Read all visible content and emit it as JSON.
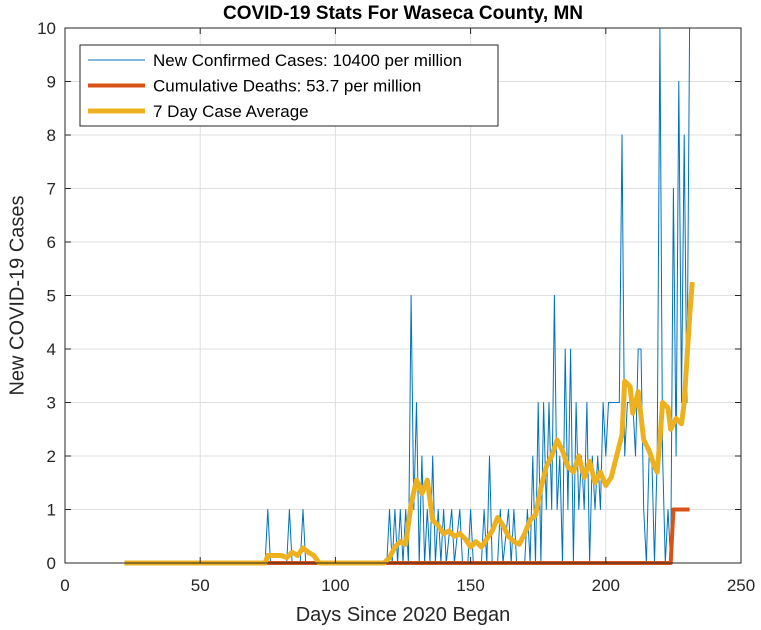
{
  "chart_data": {
    "type": "line",
    "title": "COVID-19 Stats For Waseca County, MN",
    "xlabel": "Days Since 2020 Began",
    "ylabel": "New COVID-19 Cases",
    "xlim": [
      0,
      250
    ],
    "ylim": [
      0,
      10
    ],
    "xticks": [
      0,
      50,
      100,
      150,
      200,
      250
    ],
    "yticks": [
      0,
      1,
      2,
      3,
      4,
      5,
      6,
      7,
      8,
      9,
      10
    ],
    "grid": true,
    "legend_position": "top-left",
    "colors": {
      "new_cases": "#0072BD",
      "deaths": "#D95319",
      "avg": "#EDB120",
      "grid": "#dfdfdf",
      "axis": "#262626"
    },
    "series": [
      {
        "name": "New Confirmed Cases: 10400 per million",
        "key": "new_cases",
        "points": [
          [
            22,
            0
          ],
          [
            74,
            0
          ],
          [
            75,
            1
          ],
          [
            76,
            0
          ],
          [
            82,
            0
          ],
          [
            83,
            1
          ],
          [
            84,
            0
          ],
          [
            87,
            0
          ],
          [
            88,
            1
          ],
          [
            89,
            0
          ],
          [
            119,
            0
          ],
          [
            120,
            1
          ],
          [
            121,
            0
          ],
          [
            122,
            1
          ],
          [
            123,
            0
          ],
          [
            124,
            1
          ],
          [
            125,
            0
          ],
          [
            126,
            1
          ],
          [
            127,
            0
          ],
          [
            128,
            5
          ],
          [
            129,
            1
          ],
          [
            130,
            3
          ],
          [
            131,
            0
          ],
          [
            132,
            2
          ],
          [
            133,
            0
          ],
          [
            134,
            1
          ],
          [
            135,
            0
          ],
          [
            136,
            2
          ],
          [
            137,
            0
          ],
          [
            138,
            1
          ],
          [
            139,
            0
          ],
          [
            140,
            1
          ],
          [
            141,
            0
          ],
          [
            143,
            1
          ],
          [
            144,
            0
          ],
          [
            146,
            1
          ],
          [
            147,
            0
          ],
          [
            149,
            0
          ],
          [
            150,
            1
          ],
          [
            151,
            0
          ],
          [
            154,
            0
          ],
          [
            155,
            1
          ],
          [
            156,
            0
          ],
          [
            157,
            2
          ],
          [
            158,
            0
          ],
          [
            160,
            0
          ],
          [
            161,
            1
          ],
          [
            162,
            0
          ],
          [
            164,
            1
          ],
          [
            165,
            0
          ],
          [
            166,
            1
          ],
          [
            167,
            0
          ],
          [
            170,
            0
          ],
          [
            171,
            1
          ],
          [
            172,
            0
          ],
          [
            173,
            2
          ],
          [
            174,
            0
          ],
          [
            175,
            3
          ],
          [
            176,
            0
          ],
          [
            177,
            3
          ],
          [
            178,
            1
          ],
          [
            179,
            3
          ],
          [
            180,
            1
          ],
          [
            181,
            5
          ],
          [
            182,
            1
          ],
          [
            183,
            2
          ],
          [
            184,
            0
          ],
          [
            185,
            4
          ],
          [
            186,
            1
          ],
          [
            187,
            4
          ],
          [
            188,
            0
          ],
          [
            189,
            3
          ],
          [
            190,
            1
          ],
          [
            191,
            2
          ],
          [
            192,
            1
          ],
          [
            193,
            3
          ],
          [
            194,
            0
          ],
          [
            195,
            2
          ],
          [
            196,
            1
          ],
          [
            197,
            2
          ],
          [
            198,
            1
          ],
          [
            199,
            3
          ],
          [
            200,
            2
          ],
          [
            201,
            3
          ],
          [
            202,
            3
          ],
          [
            204,
            3
          ],
          [
            205,
            3
          ],
          [
            206,
            8
          ],
          [
            207,
            2
          ],
          [
            208,
            3
          ],
          [
            210,
            3
          ],
          [
            211,
            2
          ],
          [
            212,
            4
          ],
          [
            213,
            4
          ],
          [
            214,
            1
          ],
          [
            215,
            0
          ],
          [
            216,
            2
          ],
          [
            217,
            2
          ],
          [
            218,
            0
          ],
          [
            219,
            2
          ],
          [
            220,
            10
          ],
          [
            221,
            2
          ],
          [
            222,
            0
          ],
          [
            223,
            1
          ],
          [
            224,
            0
          ],
          [
            225,
            7
          ],
          [
            226,
            2
          ],
          [
            227,
            9
          ],
          [
            228,
            3
          ],
          [
            229,
            8
          ],
          [
            230,
            3
          ],
          [
            231,
            10
          ]
        ]
      },
      {
        "name": "Cumulative Deaths: 53.7 per million",
        "key": "deaths",
        "points": [
          [
            22,
            0
          ],
          [
            224,
            0
          ],
          [
            225,
            1
          ],
          [
            231,
            1
          ]
        ]
      },
      {
        "name": "7 Day Case Average",
        "key": "avg",
        "points": [
          [
            22,
            0
          ],
          [
            74,
            0
          ],
          [
            75,
            0.14
          ],
          [
            80,
            0.14
          ],
          [
            82,
            0.1
          ],
          [
            84,
            0.2
          ],
          [
            86,
            0.14
          ],
          [
            88,
            0.28
          ],
          [
            90,
            0.2
          ],
          [
            92,
            0.14
          ],
          [
            94,
            0
          ],
          [
            118,
            0
          ],
          [
            120,
            0.1
          ],
          [
            122,
            0.3
          ],
          [
            124,
            0.4
          ],
          [
            126,
            0.35
          ],
          [
            128,
            1.1
          ],
          [
            130,
            1.55
          ],
          [
            132,
            1.3
          ],
          [
            134,
            1.55
          ],
          [
            136,
            0.8
          ],
          [
            138,
            0.7
          ],
          [
            140,
            0.55
          ],
          [
            142,
            0.6
          ],
          [
            144,
            0.5
          ],
          [
            146,
            0.55
          ],
          [
            148,
            0.45
          ],
          [
            150,
            0.3
          ],
          [
            152,
            0.4
          ],
          [
            154,
            0.3
          ],
          [
            156,
            0.45
          ],
          [
            158,
            0.6
          ],
          [
            160,
            0.85
          ],
          [
            162,
            0.7
          ],
          [
            164,
            0.5
          ],
          [
            166,
            0.4
          ],
          [
            168,
            0.35
          ],
          [
            170,
            0.55
          ],
          [
            172,
            0.8
          ],
          [
            174,
            0.9
          ],
          [
            176,
            1.4
          ],
          [
            178,
            1.8
          ],
          [
            180,
            2.0
          ],
          [
            182,
            2.3
          ],
          [
            184,
            2.1
          ],
          [
            186,
            1.8
          ],
          [
            188,
            1.7
          ],
          [
            190,
            2.0
          ],
          [
            192,
            1.6
          ],
          [
            194,
            1.9
          ],
          [
            196,
            1.5
          ],
          [
            198,
            1.7
          ],
          [
            200,
            1.45
          ],
          [
            202,
            1.6
          ],
          [
            204,
            2.0
          ],
          [
            206,
            2.4
          ],
          [
            207,
            3.4
          ],
          [
            209,
            3.3
          ],
          [
            210,
            2.8
          ],
          [
            212,
            3.2
          ],
          [
            214,
            2.3
          ],
          [
            216,
            2.1
          ],
          [
            218,
            1.8
          ],
          [
            219,
            1.7
          ],
          [
            220,
            2.3
          ],
          [
            221,
            3.0
          ],
          [
            223,
            2.9
          ],
          [
            224,
            2.5
          ],
          [
            226,
            2.7
          ],
          [
            228,
            2.6
          ],
          [
            229,
            3.0
          ],
          [
            231,
            4.6
          ],
          [
            232,
            5.25
          ]
        ]
      }
    ]
  }
}
